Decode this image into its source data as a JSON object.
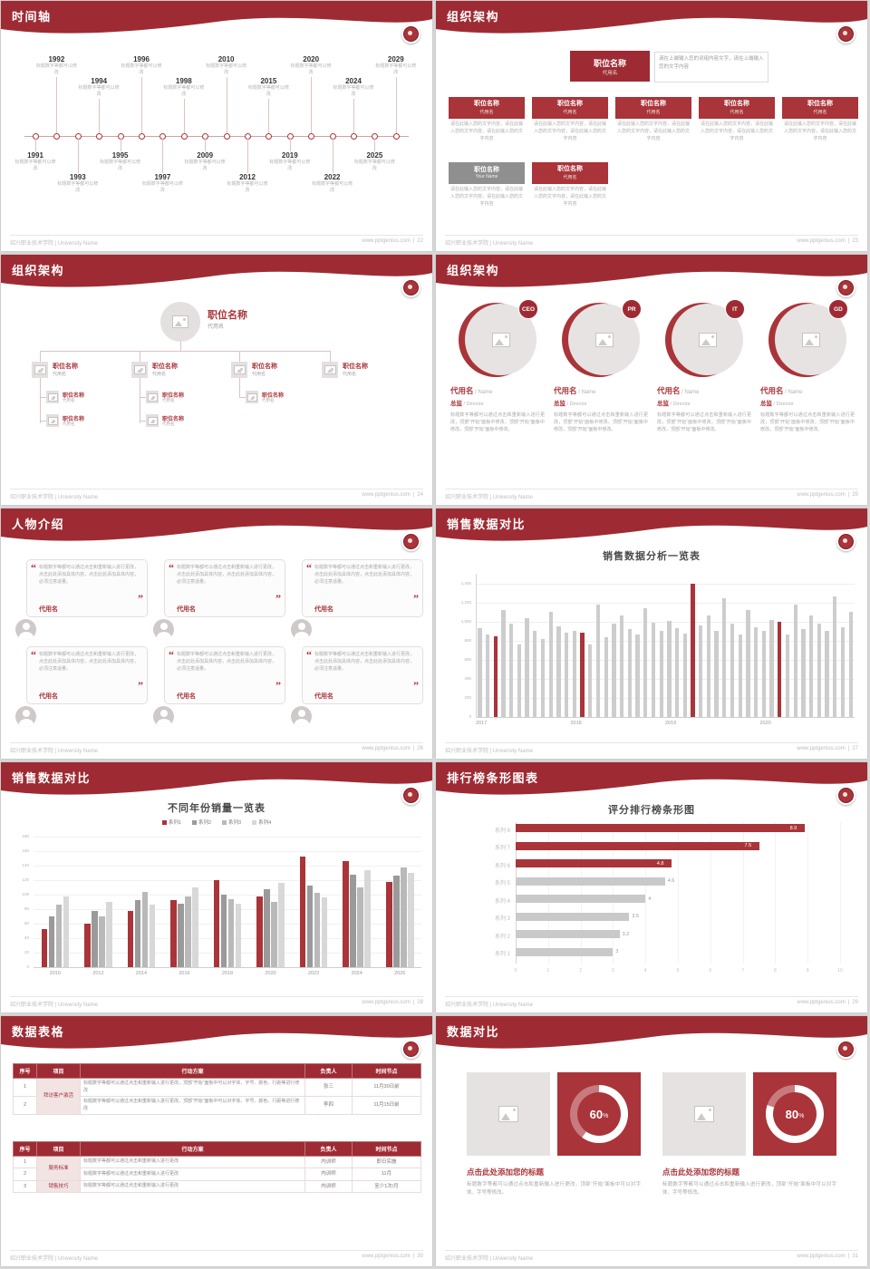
{
  "global": {
    "footer_left": "绍兴职业技术学院 | University Name",
    "footer_site": "www.pptgenius.com",
    "footer_sep": "|",
    "colors": {
      "primary": "#9E2B33",
      "accent": "#A93439",
      "bar_gray": "#CDCDCD",
      "panel_gray": "#E6E2E2",
      "pink_cell": "#F3E4E4"
    }
  },
  "slides": {
    "timeline": {
      "title": "时间轴",
      "page": "22",
      "caption": "标题数字等都可以修改",
      "top_years": [
        "1992",
        "1994",
        "1996",
        "1998",
        "2010",
        "2015",
        "2020",
        "2024",
        "2029"
      ],
      "bottom_years": [
        "1991",
        "1993",
        "1995",
        "1997",
        "2009",
        "2012",
        "2019",
        "2022",
        "2025"
      ]
    },
    "org1": {
      "title": "组织架构",
      "page": "23",
      "root": {
        "title": "职位名称",
        "sub": "代用名"
      },
      "root_note": "请在上端输入您的词组内容文字，请在上端输入您的文字内容",
      "unit_note": "请在此输入您的文字内容，请在此输入您的文字内容，请在此输入您的文字内容",
      "row1": [
        {
          "title": "职位名称",
          "sub": "代用名"
        },
        {
          "title": "职位名称",
          "sub": "代用名"
        },
        {
          "title": "职位名称",
          "sub": "代用名"
        },
        {
          "title": "职位名称",
          "sub": "代用名"
        },
        {
          "title": "职位名称",
          "sub": "代用名"
        }
      ],
      "row2": [
        {
          "title": "职位名称",
          "sub": "Your Name",
          "gray": true
        },
        {
          "title": "职位名称",
          "sub": "代用名",
          "gray": false
        }
      ]
    },
    "org2": {
      "title": "组织架构",
      "page": "24",
      "root_title": "职位名称",
      "root_sub": "代用名",
      "nodes": [
        {
          "title": "职位名称",
          "sub": "代用名"
        },
        {
          "title": "职位名称",
          "sub": "代用名"
        },
        {
          "title": "职位名称",
          "sub": "代用名"
        },
        {
          "title": "职位名称",
          "sub": "代用名"
        }
      ],
      "subnodes": [
        [
          "职位名称",
          "职位名称"
        ],
        [
          "职位名称",
          "职位名称"
        ],
        [
          "职位名称"
        ],
        []
      ],
      "subnode_sub": "代用名"
    },
    "org3": {
      "title": "组织架构",
      "page": "25",
      "badges": [
        "CEO",
        "PR",
        "IT",
        "GD"
      ],
      "name": "代用名",
      "name_suffix": " / Name",
      "role": "总监",
      "role_suffix": " / Director",
      "desc": "标题数字等都可以通过点击和重新输入进行更改，顶部“开始”面板中修改，顶部“开始”面板中修改，顶部“开始”面板中修改。"
    },
    "people": {
      "title": "人物介绍",
      "page": "26",
      "cards": [
        {
          "name": "代用名",
          "quote": "标题数字等都可以通过点击和重新输入进行更改，点击此处添加具体内容，点击此处添加具体内容，必须注意适量。"
        },
        {
          "name": "代用名",
          "quote": "标题数字等都可以通过点击和重新输入进行更改，点击此处添加具体内容，点击此处添加具体内容，必须注意适量。"
        },
        {
          "name": "代用名",
          "quote": "标题数字等都可以通过点击和重新输入进行更改，点击此处添加具体内容，点击此处添加具体内容，必须注意适量。"
        },
        {
          "name": "代用名",
          "quote": "标题数字等都可以通过点击和重新输入进行更改，点击此处添加具体内容，点击此处添加具体内容，必须注意适量。"
        },
        {
          "name": "代用名",
          "quote": "标题数字等都可以通过点击和重新输入进行更改，点击此处添加具体内容，点击此处添加具体内容，必须注意适量。"
        },
        {
          "name": "代用名",
          "quote": "标题数字等都可以通过点击和重新输入进行更改，点击此处添加具体内容，点击此处添加具体内容，必须注意适量。"
        }
      ]
    },
    "sales1": {
      "title": "销售数据对比",
      "page": "27",
      "chart_index": 0
    },
    "sales2": {
      "title": "销售数据对比",
      "page": "28",
      "chart_index": 1
    },
    "ranking": {
      "title": "排行榜条形图表",
      "page": "29",
      "chart_index": 2
    },
    "tables": {
      "title": "数据表格",
      "page": "30",
      "headers": [
        "序号",
        "项目",
        "行动方案",
        "负责人",
        "时间节点"
      ],
      "table1": {
        "rows": [
          {
            "no": "1",
            "project": "拜访客户激活",
            "plan": "标题数字等都可以通过点击和重新输入进行更改，顶部“开始”面板中可以对字体、字号、颜色、行距等进行修改",
            "owner": "张三",
            "time": "11月30日前"
          },
          {
            "no": "2",
            "project": "",
            "plan": "标题数字等都可以通过点击和重新输入进行更改，顶部“开始”面板中可以对字体、字号、颜色、行距等进行修改",
            "owner": "李四",
            "time": "11月15日前"
          }
        ]
      },
      "table2": {
        "rows": [
          {
            "no": "1",
            "project": "服务标准",
            "plan": "标题数字等都可以通过点击和重新输入进行更改",
            "owner": "内训师",
            "time": "即日实施"
          },
          {
            "no": "2",
            "project": "",
            "plan": "标题数字等都可以通过点击和重新输入进行更改",
            "owner": "内训师",
            "time": "11月"
          },
          {
            "no": "3",
            "project": "销售技巧",
            "plan": "标题数字等都可以通过点击和重新输入进行更改",
            "owner": "内训师",
            "time": "至少1次/月"
          }
        ]
      }
    },
    "compare": {
      "title": "数据对比",
      "page": "31",
      "items": [
        {
          "percent": "60",
          "unit": "%",
          "heading": "点击此处添加您的标题",
          "desc": "标题数字等都可以通过点击和重新输入进行更改，顶部“开始”面板中可以对字体、字号等修改。"
        },
        {
          "percent": "80",
          "unit": "%",
          "heading": "点击此处添加您的标题",
          "desc": "标题数字等都可以通过点击和重新输入进行更改，顶部“开始”面板中可以对字体、字号等修改。"
        }
      ]
    }
  },
  "chart_data": [
    {
      "id": "sales-analysis",
      "type": "bar",
      "title": "销售数据分析一览表",
      "x_groups": [
        "2017",
        "2018",
        "2019",
        "2020"
      ],
      "ymax": 1500,
      "yticks": [
        0,
        200,
        400,
        600,
        800,
        1000,
        1200,
        1400
      ],
      "ytick_labels": [
        "0",
        "200",
        "400",
        "600",
        "800",
        "1,000",
        "1,200",
        "1,400"
      ],
      "values": [
        930,
        860,
        850,
        1120,
        980,
        760,
        1040,
        900,
        820,
        1100,
        950,
        880,
        900,
        880,
        760,
        1180,
        840,
        980,
        1060,
        920,
        860,
        1140,
        990,
        900,
        1010,
        930,
        870,
        1400,
        960,
        1060,
        900,
        1240,
        980,
        860,
        1120,
        940,
        900,
        1020,
        1000,
        860,
        1180,
        920,
        1060,
        980,
        900,
        1260,
        940,
        1100
      ],
      "red_indices": [
        2,
        13,
        27,
        38
      ],
      "bar_color": "#CDCDCD",
      "highlight_color": "#A93439"
    },
    {
      "id": "yearly-sales",
      "type": "bar",
      "grouped": true,
      "title": "不同年份销量一览表",
      "categories": [
        "2010",
        "2012",
        "2014",
        "2016",
        "2018",
        "2020",
        "2022",
        "2024",
        "2026"
      ],
      "ymax": 180,
      "yticks": [
        0,
        20,
        40,
        60,
        80,
        100,
        120,
        140,
        160,
        180
      ],
      "colors": [
        "#A93439",
        "#9A9A9A",
        "#B9B9B9",
        "#D8D8D8"
      ],
      "series": [
        {
          "name": "系列1",
          "values": [
            52,
            60,
            78,
            92,
            120,
            98,
            152,
            146,
            118
          ]
        },
        {
          "name": "系列2",
          "values": [
            70,
            78,
            92,
            88,
            100,
            108,
            112,
            128,
            126
          ]
        },
        {
          "name": "系列3",
          "values": [
            86,
            70,
            104,
            98,
            94,
            90,
            102,
            110,
            138
          ]
        },
        {
          "name": "系列4",
          "values": [
            98,
            90,
            86,
            110,
            88,
            116,
            96,
            134,
            130
          ]
        }
      ]
    },
    {
      "id": "score-ranking",
      "type": "bar",
      "horizontal": true,
      "title": "评分排行榜条形图",
      "categories": [
        "系列 8",
        "系列 7",
        "系列 6",
        "系列 5",
        "系列 4",
        "系列 3",
        "系列 2",
        "系列 1"
      ],
      "values": [
        8.9,
        7.5,
        4.8,
        4.6,
        4,
        3.5,
        3.2,
        3
      ],
      "value_labels": [
        "8.9",
        "7.5",
        "4.8",
        "4.6",
        "4",
        "3.5",
        "3.2",
        "3"
      ],
      "red_count": 3,
      "xmax": 10,
      "xticks": [
        0,
        1,
        2,
        3,
        4,
        5,
        6,
        7,
        8,
        9,
        10
      ]
    }
  ]
}
